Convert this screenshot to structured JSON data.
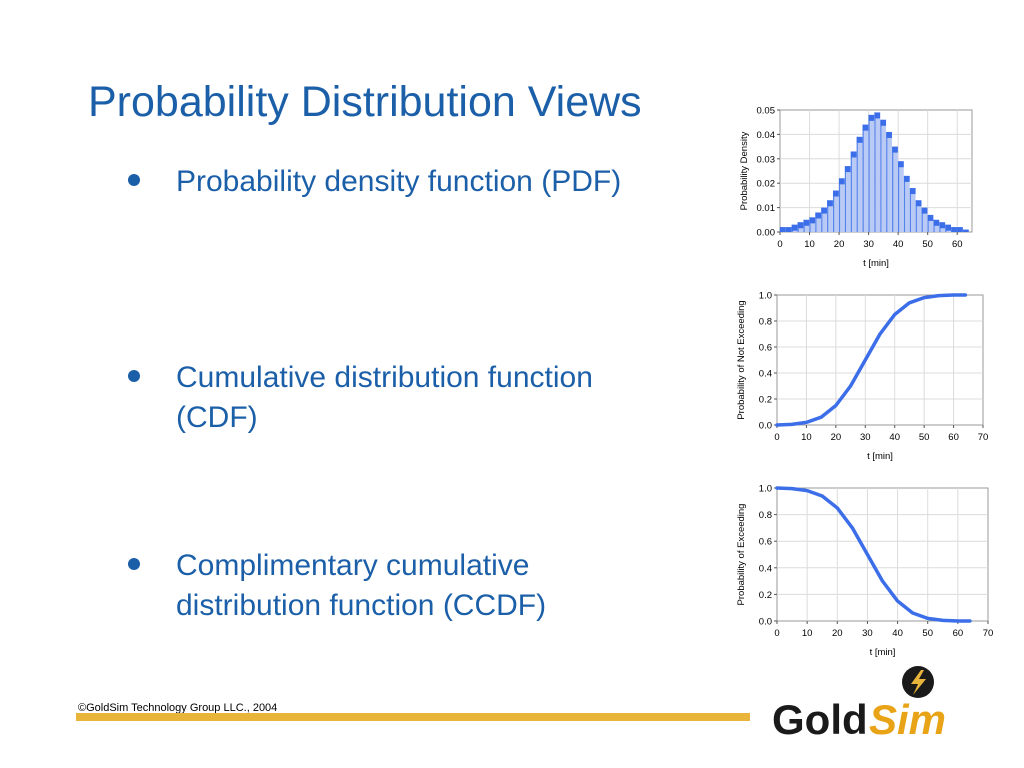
{
  "slide": {
    "title": "Probability Distribution Views",
    "bullets": [
      {
        "lines": [
          "Probability density function (PDF)"
        ]
      },
      {
        "lines": [
          "Cumulative distribution function",
          "(CDF)"
        ]
      },
      {
        "lines": [
          "Complimentary cumulative",
          "distribution function (CCDF)"
        ]
      }
    ],
    "footer": "©GoldSim Technology Group LLC., 2004",
    "logo": {
      "word_gold": "Gold",
      "word_sim": "Sim",
      "gold_color": "#1a1a1a",
      "sim_color": "#e8a317",
      "accent_color": "#e8b53a"
    }
  },
  "chart_data": [
    {
      "type": "bar",
      "title": "",
      "xlabel": "t [min]",
      "ylabel": "Probability Density",
      "xlim": [
        0,
        65
      ],
      "ylim": [
        0,
        0.05
      ],
      "xticks": [
        "0",
        "10",
        "20",
        "30",
        "40",
        "50",
        "60"
      ],
      "yticks": [
        "0.00",
        "0.01",
        "0.02",
        "0.03",
        "0.04",
        "0.05"
      ],
      "series": [
        {
          "color": "#3b6ee8",
          "x": [
            0,
            2,
            4,
            6,
            8,
            10,
            12,
            14,
            16,
            18,
            20,
            22,
            24,
            26,
            28,
            30,
            32,
            34,
            36,
            38,
            40,
            42,
            44,
            46,
            48,
            50,
            52,
            54,
            56,
            58,
            60,
            62
          ],
          "values": [
            0.002,
            0.002,
            0.003,
            0.004,
            0.005,
            0.006,
            0.008,
            0.01,
            0.013,
            0.017,
            0.022,
            0.027,
            0.033,
            0.039,
            0.044,
            0.048,
            0.049,
            0.046,
            0.041,
            0.035,
            0.029,
            0.023,
            0.018,
            0.013,
            0.01,
            0.007,
            0.005,
            0.004,
            0.003,
            0.002,
            0.002,
            0.001
          ]
        }
      ],
      "grid": true
    },
    {
      "type": "line",
      "title": "",
      "xlabel": "t [min]",
      "ylabel": "Probability of Not Exceeding",
      "xlim": [
        0,
        70
      ],
      "ylim": [
        0,
        1.0
      ],
      "xticks": [
        "0",
        "10",
        "20",
        "30",
        "40",
        "50",
        "60",
        "70"
      ],
      "yticks": [
        "0.0",
        "0.2",
        "0.4",
        "0.6",
        "0.8",
        "1.0"
      ],
      "series": [
        {
          "color": "#3b6ee8",
          "x": [
            0,
            5,
            10,
            15,
            20,
            25,
            30,
            35,
            40,
            45,
            50,
            55,
            60,
            64
          ],
          "values": [
            0.0,
            0.005,
            0.02,
            0.06,
            0.15,
            0.3,
            0.5,
            0.7,
            0.85,
            0.94,
            0.98,
            0.995,
            1.0,
            1.0
          ]
        }
      ],
      "grid": true
    },
    {
      "type": "line",
      "title": "",
      "xlabel": "t [min]",
      "ylabel": "Probability of Exceeding",
      "xlim": [
        0,
        70
      ],
      "ylim": [
        0,
        1.0
      ],
      "xticks": [
        "0",
        "10",
        "20",
        "30",
        "40",
        "50",
        "60",
        "70"
      ],
      "yticks": [
        "0.0",
        "0.2",
        "0.4",
        "0.6",
        "0.8",
        "1.0"
      ],
      "series": [
        {
          "color": "#3b6ee8",
          "x": [
            0,
            5,
            10,
            15,
            20,
            25,
            30,
            35,
            40,
            45,
            50,
            55,
            60,
            64
          ],
          "values": [
            1.0,
            0.995,
            0.98,
            0.94,
            0.85,
            0.7,
            0.5,
            0.3,
            0.15,
            0.06,
            0.02,
            0.005,
            0.0,
            0.0
          ]
        }
      ],
      "grid": true
    }
  ]
}
